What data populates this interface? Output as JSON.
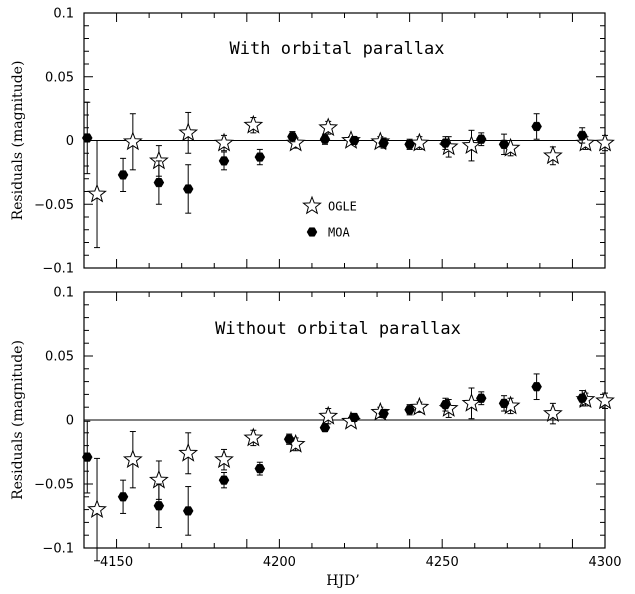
{
  "chart_data": [
    {
      "type": "scatter",
      "title": "With orbital parallax",
      "xlabel": "",
      "ylabel": "Residuals (magnitude)",
      "xlim": [
        4140,
        4300
      ],
      "ylim": [
        -0.1,
        0.1
      ],
      "xticks": [
        4150,
        4200,
        4250,
        4300
      ],
      "yticks": [
        -0.1,
        -0.05,
        0,
        0.05,
        0.1
      ],
      "ytick_labels": [
        "−0.1",
        "−0.05",
        "0",
        "0.05",
        "0.1"
      ],
      "show_x_labels": false,
      "zero_line": true,
      "legend": [
        {
          "name": "OGLE",
          "marker": "open-star"
        },
        {
          "name": "MOA",
          "marker": "filled-hexagon"
        }
      ],
      "series": [
        {
          "name": "OGLE",
          "marker": "open-star",
          "points": [
            {
              "x": 4144,
              "y": -0.042,
              "err": 0.042
            },
            {
              "x": 4155,
              "y": -0.001,
              "err": 0.022
            },
            {
              "x": 4163,
              "y": -0.016,
              "err": 0.012
            },
            {
              "x": 4172,
              "y": 0.006,
              "err": 0.016
            },
            {
              "x": 4183,
              "y": -0.002,
              "err": 0.006
            },
            {
              "x": 4192,
              "y": 0.012,
              "err": 0.006
            },
            {
              "x": 4205,
              "y": -0.002,
              "err": 0.004
            },
            {
              "x": 4215,
              "y": 0.01,
              "err": 0.005
            },
            {
              "x": 4222,
              "y": 0.0,
              "err": 0.003
            },
            {
              "x": 4231,
              "y": -0.001,
              "err": 0.004
            },
            {
              "x": 4243,
              "y": -0.002,
              "err": 0.005
            },
            {
              "x": 4252,
              "y": -0.005,
              "err": 0.008
            },
            {
              "x": 4259,
              "y": -0.004,
              "err": 0.012
            },
            {
              "x": 4271,
              "y": -0.006,
              "err": 0.006
            },
            {
              "x": 4284,
              "y": -0.012,
              "err": 0.007
            },
            {
              "x": 4294,
              "y": -0.002,
              "err": 0.005
            },
            {
              "x": 4300,
              "y": -0.002,
              "err": 0.006
            }
          ]
        },
        {
          "name": "MOA",
          "marker": "filled-hexagon",
          "points": [
            {
              "x": 4141,
              "y": 0.002,
              "err": 0.028
            },
            {
              "x": 4152,
              "y": -0.027,
              "err": 0.013
            },
            {
              "x": 4163,
              "y": -0.033,
              "err": 0.017
            },
            {
              "x": 4172,
              "y": -0.038,
              "err": 0.019
            },
            {
              "x": 4183,
              "y": -0.016,
              "err": 0.007
            },
            {
              "x": 4194,
              "y": -0.013,
              "err": 0.006
            },
            {
              "x": 4204,
              "y": 0.003,
              "err": 0.004
            },
            {
              "x": 4214,
              "y": 0.001,
              "err": 0.004
            },
            {
              "x": 4223,
              "y": 0.0,
              "err": 0.003
            },
            {
              "x": 4232,
              "y": -0.002,
              "err": 0.004
            },
            {
              "x": 4240,
              "y": -0.003,
              "err": 0.004
            },
            {
              "x": 4251,
              "y": -0.002,
              "err": 0.005
            },
            {
              "x": 4262,
              "y": 0.001,
              "err": 0.005
            },
            {
              "x": 4269,
              "y": -0.003,
              "err": 0.008
            },
            {
              "x": 4279,
              "y": 0.011,
              "err": 0.01
            },
            {
              "x": 4293,
              "y": 0.004,
              "err": 0.006
            }
          ]
        }
      ]
    },
    {
      "type": "scatter",
      "title": "Without orbital parallax",
      "xlabel": "HJD’",
      "ylabel": "Residuals (magnitude)",
      "xlim": [
        4140,
        4300
      ],
      "ylim": [
        -0.1,
        0.1
      ],
      "xticks": [
        4150,
        4200,
        4250,
        4300
      ],
      "yticks": [
        -0.1,
        -0.05,
        0,
        0.05,
        0.1
      ],
      "ytick_labels": [
        "−0.1",
        "−0.05",
        "0",
        "0.05",
        "0.1"
      ],
      "show_x_labels": true,
      "zero_line": true,
      "legend": [],
      "series": [
        {
          "name": "OGLE",
          "marker": "open-star",
          "points": [
            {
              "x": 4144,
              "y": -0.07,
              "err": 0.04
            },
            {
              "x": 4155,
              "y": -0.031,
              "err": 0.022
            },
            {
              "x": 4163,
              "y": -0.047,
              "err": 0.015
            },
            {
              "x": 4172,
              "y": -0.026,
              "err": 0.016
            },
            {
              "x": 4183,
              "y": -0.031,
              "err": 0.008
            },
            {
              "x": 4192,
              "y": -0.014,
              "err": 0.006
            },
            {
              "x": 4205,
              "y": -0.019,
              "err": 0.005
            },
            {
              "x": 4215,
              "y": 0.003,
              "err": 0.006
            },
            {
              "x": 4222,
              "y": -0.001,
              "err": 0.003
            },
            {
              "x": 4231,
              "y": 0.006,
              "err": 0.004
            },
            {
              "x": 4243,
              "y": 0.01,
              "err": 0.004
            },
            {
              "x": 4252,
              "y": 0.009,
              "err": 0.007
            },
            {
              "x": 4259,
              "y": 0.013,
              "err": 0.012
            },
            {
              "x": 4271,
              "y": 0.011,
              "err": 0.006
            },
            {
              "x": 4284,
              "y": 0.005,
              "err": 0.008
            },
            {
              "x": 4294,
              "y": 0.016,
              "err": 0.005
            },
            {
              "x": 4300,
              "y": 0.015,
              "err": 0.006
            }
          ]
        },
        {
          "name": "MOA",
          "marker": "filled-hexagon",
          "points": [
            {
              "x": 4141,
              "y": -0.029,
              "err": 0.028
            },
            {
              "x": 4152,
              "y": -0.06,
              "err": 0.013
            },
            {
              "x": 4163,
              "y": -0.067,
              "err": 0.017
            },
            {
              "x": 4172,
              "y": -0.071,
              "err": 0.019
            },
            {
              "x": 4183,
              "y": -0.047,
              "err": 0.006
            },
            {
              "x": 4194,
              "y": -0.038,
              "err": 0.005
            },
            {
              "x": 4203,
              "y": -0.015,
              "err": 0.004
            },
            {
              "x": 4214,
              "y": -0.006,
              "err": 0.003
            },
            {
              "x": 4223,
              "y": 0.002,
              "err": 0.003
            },
            {
              "x": 4232,
              "y": 0.005,
              "err": 0.003
            },
            {
              "x": 4240,
              "y": 0.008,
              "err": 0.004
            },
            {
              "x": 4251,
              "y": 0.012,
              "err": 0.005
            },
            {
              "x": 4262,
              "y": 0.017,
              "err": 0.005
            },
            {
              "x": 4269,
              "y": 0.013,
              "err": 0.006
            },
            {
              "x": 4279,
              "y": 0.026,
              "err": 0.01
            },
            {
              "x": 4293,
              "y": 0.017,
              "err": 0.006
            }
          ]
        }
      ]
    }
  ]
}
